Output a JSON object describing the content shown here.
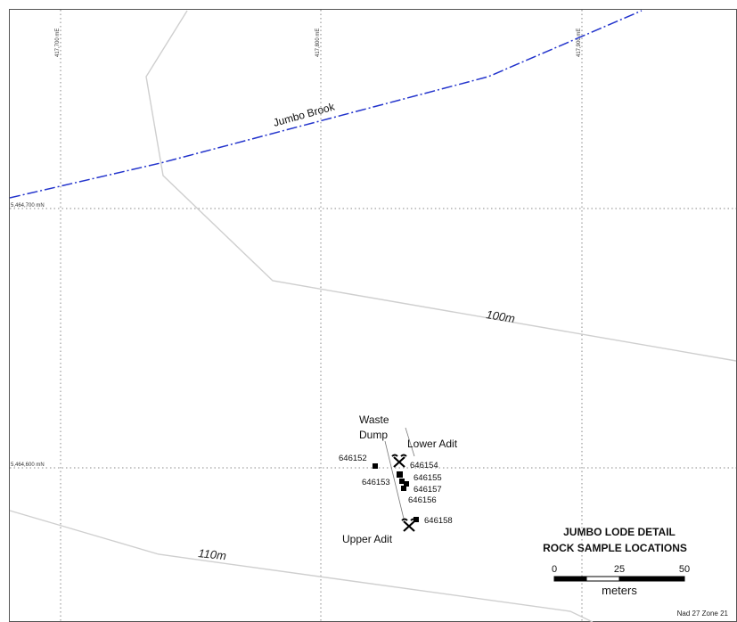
{
  "grid": {
    "eastings": [
      "417,700 mE",
      "417,800 mE",
      "417,900 mE"
    ],
    "northings": [
      "5,464,700 mN",
      "5,464,600 mN"
    ]
  },
  "stream": {
    "name": "Jumbo Brook",
    "color": "#2233cc"
  },
  "contours": {
    "upper": "100m",
    "lower": "110m"
  },
  "features": {
    "waste_dump_line1": "Waste",
    "waste_dump_line2": "Dump",
    "lower_adit": "Lower Adit",
    "upper_adit": "Upper Adit"
  },
  "samples": [
    "646152",
    "646153",
    "646154",
    "646155",
    "646156",
    "646157",
    "646158"
  ],
  "title": {
    "line1": "JUMBO LODE DETAIL",
    "line2": "ROCK SAMPLE LOCATIONS"
  },
  "scale": {
    "ticks": [
      "0",
      "25",
      "50"
    ],
    "unit": "meters"
  },
  "projection": "Nad 27 Zone 21",
  "icons": {
    "adit": "crossed-pick-hammer-icon",
    "sample": "square-marker-icon"
  }
}
